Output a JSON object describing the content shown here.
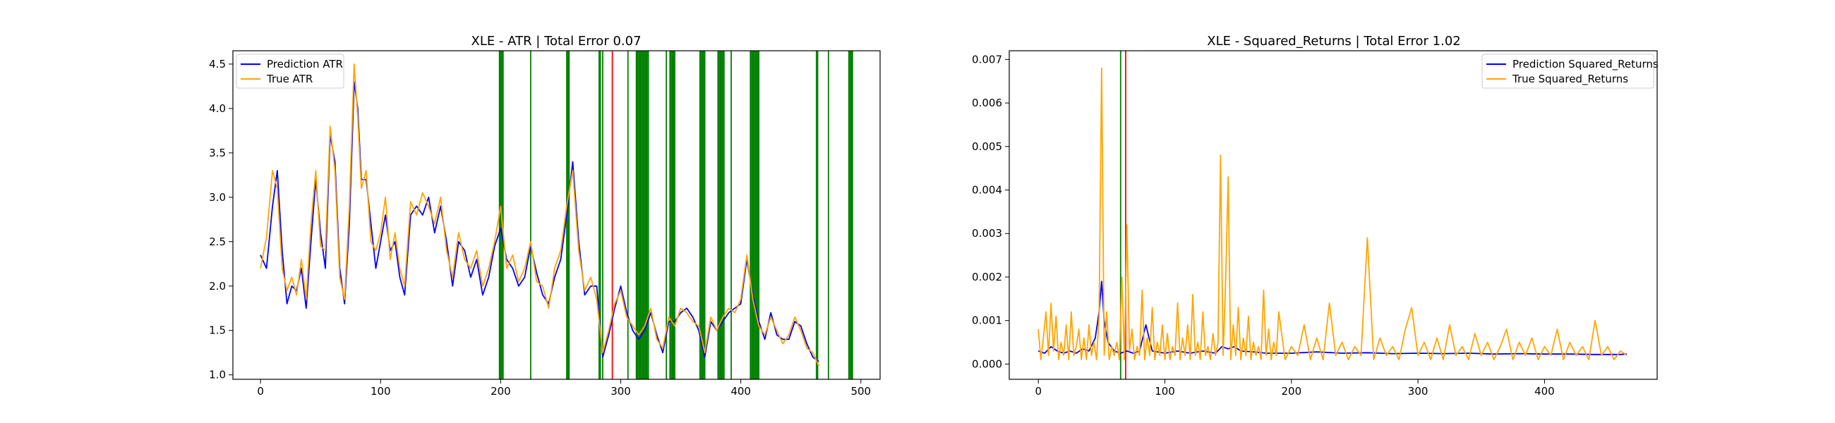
{
  "chart_data": [
    {
      "type": "line",
      "title": "XLE - ATR | Total Error 0.07",
      "xlabel": "",
      "ylabel": "",
      "xlim": [
        -23,
        516
      ],
      "ylim": [
        0.95,
        4.65
      ],
      "xticks": [
        0,
        100,
        200,
        300,
        400,
        500
      ],
      "yticks": [
        1.0,
        1.5,
        2.0,
        2.5,
        3.0,
        3.5,
        4.0,
        4.5
      ],
      "ytick_labels": [
        "1.0",
        "1.5",
        "2.0",
        "2.5",
        "3.0",
        "3.5",
        "4.0",
        "4.5"
      ],
      "legend_location": "upper-left",
      "grid": false,
      "series": [
        {
          "name": "Prediction ATR",
          "color": "#0000ff",
          "x": [
            0,
            5,
            10,
            14,
            18,
            22,
            26,
            30,
            34,
            38,
            42,
            46,
            50,
            54,
            58,
            62,
            66,
            70,
            74,
            78,
            81,
            84,
            88,
            92,
            96,
            100,
            104,
            108,
            112,
            116,
            120,
            125,
            130,
            135,
            140,
            145,
            150,
            155,
            160,
            165,
            170,
            175,
            180,
            185,
            190,
            195,
            200,
            205,
            210,
            215,
            220,
            225,
            230,
            235,
            240,
            245,
            250,
            255,
            260,
            265,
            270,
            275,
            280,
            285,
            290,
            295,
            300,
            305,
            310,
            315,
            320,
            325,
            330,
            335,
            340,
            345,
            350,
            355,
            360,
            365,
            370,
            375,
            380,
            385,
            390,
            395,
            400,
            405,
            410,
            415,
            420,
            425,
            430,
            435,
            440,
            445,
            450,
            455,
            460,
            465
          ],
          "y": [
            2.35,
            2.2,
            2.9,
            3.3,
            2.4,
            1.8,
            2.0,
            1.95,
            2.2,
            1.75,
            2.5,
            3.2,
            2.6,
            2.2,
            3.7,
            3.4,
            2.2,
            1.8,
            2.7,
            4.3,
            4.0,
            3.2,
            3.2,
            2.7,
            2.2,
            2.5,
            2.8,
            2.4,
            2.5,
            2.1,
            1.9,
            2.8,
            2.9,
            2.8,
            3.0,
            2.6,
            2.9,
            2.5,
            2.0,
            2.5,
            2.4,
            2.1,
            2.3,
            1.9,
            2.1,
            2.45,
            2.65,
            2.3,
            2.2,
            2.0,
            2.1,
            2.45,
            2.15,
            1.9,
            1.8,
            2.1,
            2.3,
            2.8,
            3.4,
            2.5,
            1.9,
            2.0,
            2.0,
            1.2,
            1.45,
            1.75,
            2.0,
            1.7,
            1.5,
            1.4,
            1.5,
            1.7,
            1.45,
            1.25,
            1.6,
            1.6,
            1.7,
            1.75,
            1.65,
            1.5,
            1.2,
            1.6,
            1.5,
            1.6,
            1.7,
            1.75,
            1.8,
            2.3,
            1.9,
            1.6,
            1.4,
            1.7,
            1.45,
            1.4,
            1.4,
            1.6,
            1.55,
            1.35,
            1.2,
            1.15
          ]
        },
        {
          "name": "True ATR",
          "color": "#ffa500",
          "x": [
            0,
            5,
            10,
            14,
            18,
            22,
            26,
            30,
            34,
            38,
            42,
            46,
            50,
            54,
            58,
            62,
            66,
            70,
            74,
            78,
            81,
            84,
            88,
            92,
            96,
            100,
            104,
            108,
            112,
            116,
            120,
            125,
            130,
            135,
            140,
            145,
            150,
            155,
            160,
            165,
            170,
            175,
            180,
            185,
            190,
            195,
            200,
            205,
            210,
            215,
            220,
            225,
            230,
            235,
            240,
            245,
            250,
            255,
            260,
            265,
            270,
            275,
            280,
            285,
            290,
            295,
            300,
            305,
            310,
            315,
            320,
            325,
            330,
            335,
            340,
            345,
            350,
            355,
            360,
            365,
            370,
            375,
            380,
            385,
            390,
            395,
            400,
            405,
            410,
            415,
            420,
            425,
            430,
            435,
            440,
            445,
            450,
            455,
            460,
            465
          ],
          "y": [
            2.2,
            2.55,
            3.3,
            3.1,
            2.2,
            1.95,
            2.1,
            1.9,
            2.3,
            1.85,
            2.7,
            3.3,
            2.45,
            2.4,
            3.8,
            3.3,
            2.1,
            1.85,
            2.9,
            4.5,
            3.9,
            3.1,
            3.3,
            2.5,
            2.4,
            2.6,
            3.0,
            2.3,
            2.6,
            2.2,
            2.0,
            2.95,
            2.8,
            3.05,
            2.9,
            2.7,
            3.0,
            2.4,
            2.1,
            2.6,
            2.3,
            2.2,
            2.4,
            2.0,
            2.2,
            2.5,
            2.9,
            2.2,
            2.35,
            2.05,
            2.2,
            2.5,
            2.05,
            2.0,
            1.75,
            2.2,
            2.4,
            2.9,
            3.3,
            2.4,
            1.95,
            2.1,
            1.85,
            1.25,
            1.5,
            1.8,
            1.95,
            1.65,
            1.55,
            1.45,
            1.55,
            1.75,
            1.4,
            1.3,
            1.65,
            1.55,
            1.75,
            1.7,
            1.6,
            1.55,
            1.25,
            1.65,
            1.5,
            1.65,
            1.75,
            1.7,
            1.85,
            2.35,
            1.85,
            1.55,
            1.45,
            1.65,
            1.5,
            1.35,
            1.45,
            1.65,
            1.5,
            1.3,
            1.25,
            1.1
          ]
        }
      ],
      "vertical_lines": [
        {
          "color": "#008000",
          "x": [
            199,
            200,
            201,
            202,
            225,
            255,
            256,
            257,
            282,
            283,
            285,
            306,
            313,
            314,
            315,
            316,
            317,
            318,
            319,
            320,
            321,
            322,
            323,
            338,
            341,
            342,
            343,
            344,
            345,
            366,
            367,
            368,
            369,
            370,
            381,
            382,
            383,
            384,
            385,
            386,
            392,
            408,
            409,
            410,
            411,
            412,
            413,
            414,
            415,
            463,
            464,
            473,
            490,
            491,
            492,
            493
          ]
        },
        {
          "color": "#ff0000",
          "x": [
            293
          ]
        }
      ]
    },
    {
      "type": "line",
      "title": "XLE - Squared_Returns | Total Error 1.02",
      "xlabel": "",
      "ylabel": "",
      "xlim": [
        -23,
        489
      ],
      "ylim": [
        -0.00035,
        0.0072
      ],
      "xticks": [
        0,
        100,
        200,
        300,
        400
      ],
      "yticks": [
        0.0,
        0.001,
        0.002,
        0.003,
        0.004,
        0.005,
        0.006,
        0.007
      ],
      "ytick_labels": [
        "0.000",
        "0.001",
        "0.002",
        "0.003",
        "0.004",
        "0.005",
        "0.006",
        "0.007"
      ],
      "legend_location": "upper-right",
      "grid": false,
      "series": [
        {
          "name": "Prediction Squared_Returns",
          "color": "#0000ff",
          "x": [
            0,
            5,
            10,
            15,
            20,
            25,
            30,
            35,
            40,
            45,
            48,
            50,
            52,
            55,
            60,
            65,
            70,
            75,
            80,
            85,
            90,
            100,
            110,
            120,
            130,
            140,
            145,
            150,
            155,
            160,
            170,
            180,
            200,
            220,
            240,
            260,
            280,
            300,
            320,
            340,
            360,
            380,
            400,
            420,
            440,
            460,
            465
          ],
          "y": [
            0.0003,
            0.00025,
            0.0004,
            0.0003,
            0.00025,
            0.0003,
            0.00025,
            0.00035,
            0.0003,
            0.0006,
            0.0012,
            0.0019,
            0.001,
            0.0005,
            0.0003,
            0.00025,
            0.0003,
            0.00025,
            0.0003,
            0.0009,
            0.0003,
            0.00025,
            0.0003,
            0.00025,
            0.0003,
            0.00025,
            0.0004,
            0.00035,
            0.0004,
            0.0003,
            0.00028,
            0.00025,
            0.00025,
            0.00028,
            0.00025,
            0.00026,
            0.00024,
            0.00025,
            0.00024,
            0.00025,
            0.00023,
            0.00024,
            0.00023,
            0.00023,
            0.00022,
            0.00022,
            0.00023
          ]
        },
        {
          "name": "True Squared_Returns",
          "color": "#ffa500",
          "x": [
            0,
            2,
            4,
            6,
            8,
            10,
            12,
            14,
            16,
            18,
            20,
            22,
            24,
            26,
            28,
            30,
            32,
            34,
            36,
            38,
            40,
            42,
            44,
            46,
            48,
            50,
            52,
            54,
            56,
            58,
            60,
            62,
            64,
            66,
            68,
            70,
            72,
            74,
            76,
            78,
            80,
            82,
            84,
            86,
            88,
            90,
            92,
            94,
            96,
            98,
            100,
            102,
            104,
            106,
            108,
            110,
            112,
            114,
            116,
            118,
            120,
            122,
            124,
            126,
            128,
            130,
            132,
            134,
            136,
            138,
            140,
            142,
            144,
            146,
            148,
            150,
            152,
            154,
            156,
            158,
            160,
            162,
            164,
            166,
            168,
            170,
            172,
            174,
            176,
            178,
            180,
            182,
            184,
            186,
            188,
            190,
            195,
            200,
            205,
            210,
            215,
            220,
            225,
            230,
            235,
            240,
            245,
            250,
            255,
            260,
            265,
            270,
            275,
            280,
            285,
            290,
            295,
            300,
            305,
            310,
            315,
            320,
            325,
            330,
            335,
            340,
            345,
            350,
            355,
            360,
            365,
            370,
            375,
            380,
            385,
            390,
            395,
            400,
            405,
            410,
            415,
            420,
            425,
            430,
            435,
            440,
            445,
            450,
            455,
            460,
            465
          ],
          "y": [
            0.0008,
            0.0001,
            0.0006,
            0.0012,
            0.0002,
            0.0014,
            0.0003,
            0.0011,
            0.0001,
            0.0005,
            0.0002,
            0.0009,
            0.0001,
            0.0012,
            0.0002,
            0.0004,
            0.0008,
            0.0001,
            0.0006,
            0.0001,
            0.0009,
            0.0002,
            0.0005,
            0.0001,
            0.0011,
            0.0068,
            0.0002,
            0.0012,
            0.0001,
            0.0004,
            0.0002,
            0.0005,
            0.0001,
            0.002,
            0.0001,
            0.0032,
            0.0003,
            0.0008,
            0.0001,
            0.0004,
            0.0002,
            0.0017,
            0.0001,
            0.0006,
            0.0002,
            0.0013,
            0.0001,
            0.0005,
            0.0002,
            0.0009,
            0.0001,
            0.0007,
            0.0001,
            0.0004,
            0.0002,
            0.0014,
            0.0001,
            0.0006,
            0.0002,
            0.0009,
            0.0001,
            0.0016,
            0.0002,
            0.0005,
            0.0001,
            0.0012,
            0.0002,
            0.0004,
            0.0001,
            0.0007,
            0.0002,
            0.0005,
            0.0048,
            0.0002,
            0.0019,
            0.0043,
            0.0001,
            0.0009,
            0.0002,
            0.0013,
            0.0001,
            0.0006,
            0.0002,
            0.0011,
            0.0001,
            0.0005,
            0.0002,
            0.0004,
            0.0001,
            0.0017,
            0.0002,
            0.0008,
            0.0001,
            0.0005,
            0.0002,
            0.0012,
            0.0001,
            0.0004,
            0.0002,
            0.0009,
            0.0001,
            0.0006,
            0.0001,
            0.0014,
            0.0002,
            0.0005,
            0.0001,
            0.0004,
            0.0002,
            0.0029,
            0.0001,
            0.0006,
            0.0002,
            0.0004,
            0.0001,
            0.0008,
            0.0013,
            0.0002,
            0.0005,
            0.0001,
            0.0006,
            0.0001,
            0.0009,
            0.0002,
            0.0004,
            0.0001,
            0.0007,
            0.0002,
            0.0005,
            0.0001,
            0.0004,
            0.0008,
            0.0001,
            0.0005,
            0.0002,
            0.0006,
            0.0001,
            0.0004,
            0.0002,
            0.0008,
            0.0001,
            0.0005,
            0.0002,
            0.0004,
            0.0001,
            0.001,
            0.0002,
            0.0004,
            0.0001,
            0.0003,
            0.0002
          ]
        }
      ],
      "vertical_lines": [
        {
          "color": "#008000",
          "x": [
            65
          ]
        },
        {
          "color": "#ff0000",
          "x": [
            69
          ]
        }
      ]
    }
  ]
}
